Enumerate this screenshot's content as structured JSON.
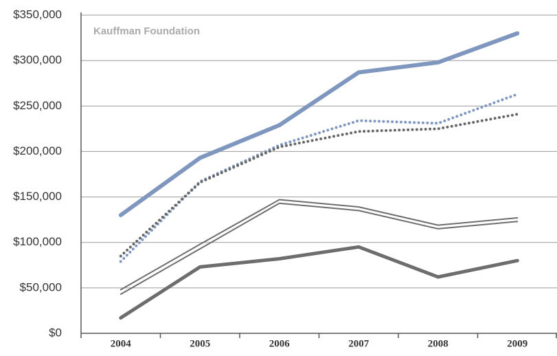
{
  "chart_data": {
    "type": "line",
    "annotation": "Kauffman Foundation",
    "categories": [
      "2004",
      "2005",
      "2006",
      "2007",
      "2008",
      "2009"
    ],
    "series": [
      {
        "color": "#7f97bf",
        "width": 6,
        "dash": "solid",
        "values": [
          130000,
          193000,
          229000,
          287000,
          298000,
          330000
        ]
      },
      {
        "color": "#7f97bf",
        "width": 4,
        "dash": "dotted",
        "values": [
          79000,
          167000,
          207000,
          234000,
          231000,
          263000
        ]
      },
      {
        "color": "#666666",
        "width": 4,
        "dash": "dotted",
        "values": [
          85000,
          166000,
          205000,
          222000,
          225000,
          241000
        ]
      },
      {
        "color": "#6d6d6d",
        "width": 2,
        "dash": "solid",
        "values": [
          48000,
          98000,
          147000,
          139000,
          119000,
          127000
        ]
      },
      {
        "color": "#6d6d6d",
        "width": 2,
        "dash": "solid",
        "values": [
          43000,
          93000,
          143000,
          135000,
          115000,
          123000
        ]
      },
      {
        "color": "#6d6d6d",
        "width": 5,
        "dash": "solid",
        "values": [
          17000,
          73000,
          82000,
          95000,
          62000,
          80000
        ]
      }
    ],
    "ylim": [
      0,
      350000
    ],
    "yticks": [
      {
        "value": 0,
        "label": "$0"
      },
      {
        "value": 50000,
        "label": "$50,000"
      },
      {
        "value": 100000,
        "label": "$100,000"
      },
      {
        "value": 150000,
        "label": "$150,000"
      },
      {
        "value": 200000,
        "label": "$200,000"
      },
      {
        "value": 250000,
        "label": "$250,000"
      },
      {
        "value": 300000,
        "label": "$300,000"
      },
      {
        "value": 350000,
        "label": "$350,000"
      }
    ],
    "grid": true
  }
}
